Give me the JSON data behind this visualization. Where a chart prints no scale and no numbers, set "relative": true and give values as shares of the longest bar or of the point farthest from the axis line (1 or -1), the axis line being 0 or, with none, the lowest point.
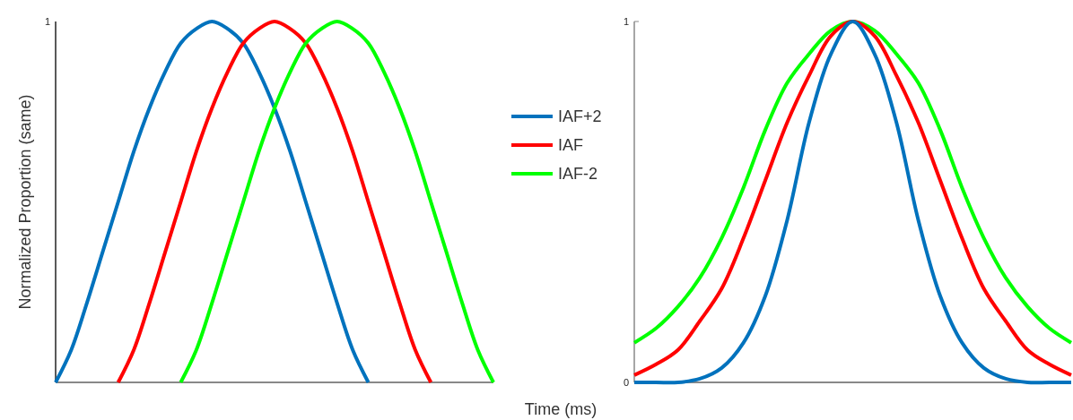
{
  "chart_data": [
    {
      "type": "line",
      "ylabel": "Normalized Proportion (same)",
      "xlabel": "Time (ms)",
      "categories": [
        null,
        null,
        null,
        null,
        null,
        null,
        null,
        null,
        null,
        null,
        null,
        null,
        null,
        null,
        null,
        null,
        null,
        null,
        null,
        null,
        null,
        null,
        null,
        null,
        null,
        null,
        null,
        null,
        null
      ],
      "relative": true,
      "annotations": [
        "1"
      ],
      "legend": "right",
      "grid": false,
      "series": [
        {
          "name": "IAF+2",
          "color": "#0072bd",
          "values": [
            0,
            0.09,
            0.22,
            0.36,
            0.5,
            0.64,
            0.76,
            0.86,
            0.94,
            0.98,
            1,
            0.98,
            0.94,
            0.86,
            0.76,
            0.64,
            0.5,
            0.36,
            0.22,
            0.09,
            0,
            null,
            null,
            null,
            null,
            null,
            null,
            null,
            null
          ]
        },
        {
          "name": "IAF",
          "color": "#ff0000",
          "values": [
            null,
            null,
            null,
            null,
            0,
            0.09,
            0.22,
            0.36,
            0.5,
            0.64,
            0.76,
            0.86,
            0.94,
            0.98,
            1,
            0.98,
            0.94,
            0.86,
            0.76,
            0.64,
            0.5,
            0.36,
            0.22,
            0.09,
            0,
            null,
            null,
            null,
            null
          ]
        },
        {
          "name": "IAF-2",
          "color": "#00ff00",
          "values": [
            null,
            null,
            null,
            null,
            null,
            null,
            null,
            null,
            0,
            0.09,
            0.22,
            0.36,
            0.5,
            0.64,
            0.76,
            0.86,
            0.94,
            0.98,
            1,
            0.98,
            0.94,
            0.86,
            0.76,
            0.64,
            0.5,
            0.36,
            0.22,
            0.09,
            0
          ]
        }
      ]
    },
    {
      "type": "line",
      "categories": [
        null,
        null,
        null,
        null,
        null,
        null,
        null,
        null,
        null,
        null,
        null,
        null,
        null,
        null,
        null,
        null,
        null,
        null,
        null,
        null,
        null
      ],
      "ylim": [
        0,
        1
      ],
      "yticks": [
        0,
        1
      ],
      "grid": false,
      "series": [
        {
          "color": "#00ff00",
          "values": [
            0.11,
            0.15,
            0.21,
            0.29,
            0.4,
            0.54,
            0.7,
            0.83,
            0.91,
            0.975,
            1,
            0.975,
            0.91,
            0.83,
            0.7,
            0.54,
            0.4,
            0.29,
            0.21,
            0.15,
            0.11
          ]
        },
        {
          "color": "#ff0000",
          "values": [
            0.02,
            0.05,
            0.09,
            0.17,
            0.26,
            0.4,
            0.56,
            0.72,
            0.85,
            0.96,
            1,
            0.96,
            0.85,
            0.72,
            0.56,
            0.4,
            0.26,
            0.17,
            0.09,
            0.05,
            0.02
          ]
        },
        {
          "color": "#0072bd",
          "values": [
            0,
            0,
            0,
            0.01,
            0.04,
            0.11,
            0.24,
            0.45,
            0.72,
            0.91,
            1,
            0.91,
            0.72,
            0.45,
            0.24,
            0.11,
            0.04,
            0.01,
            0,
            0,
            0
          ]
        }
      ]
    }
  ]
}
